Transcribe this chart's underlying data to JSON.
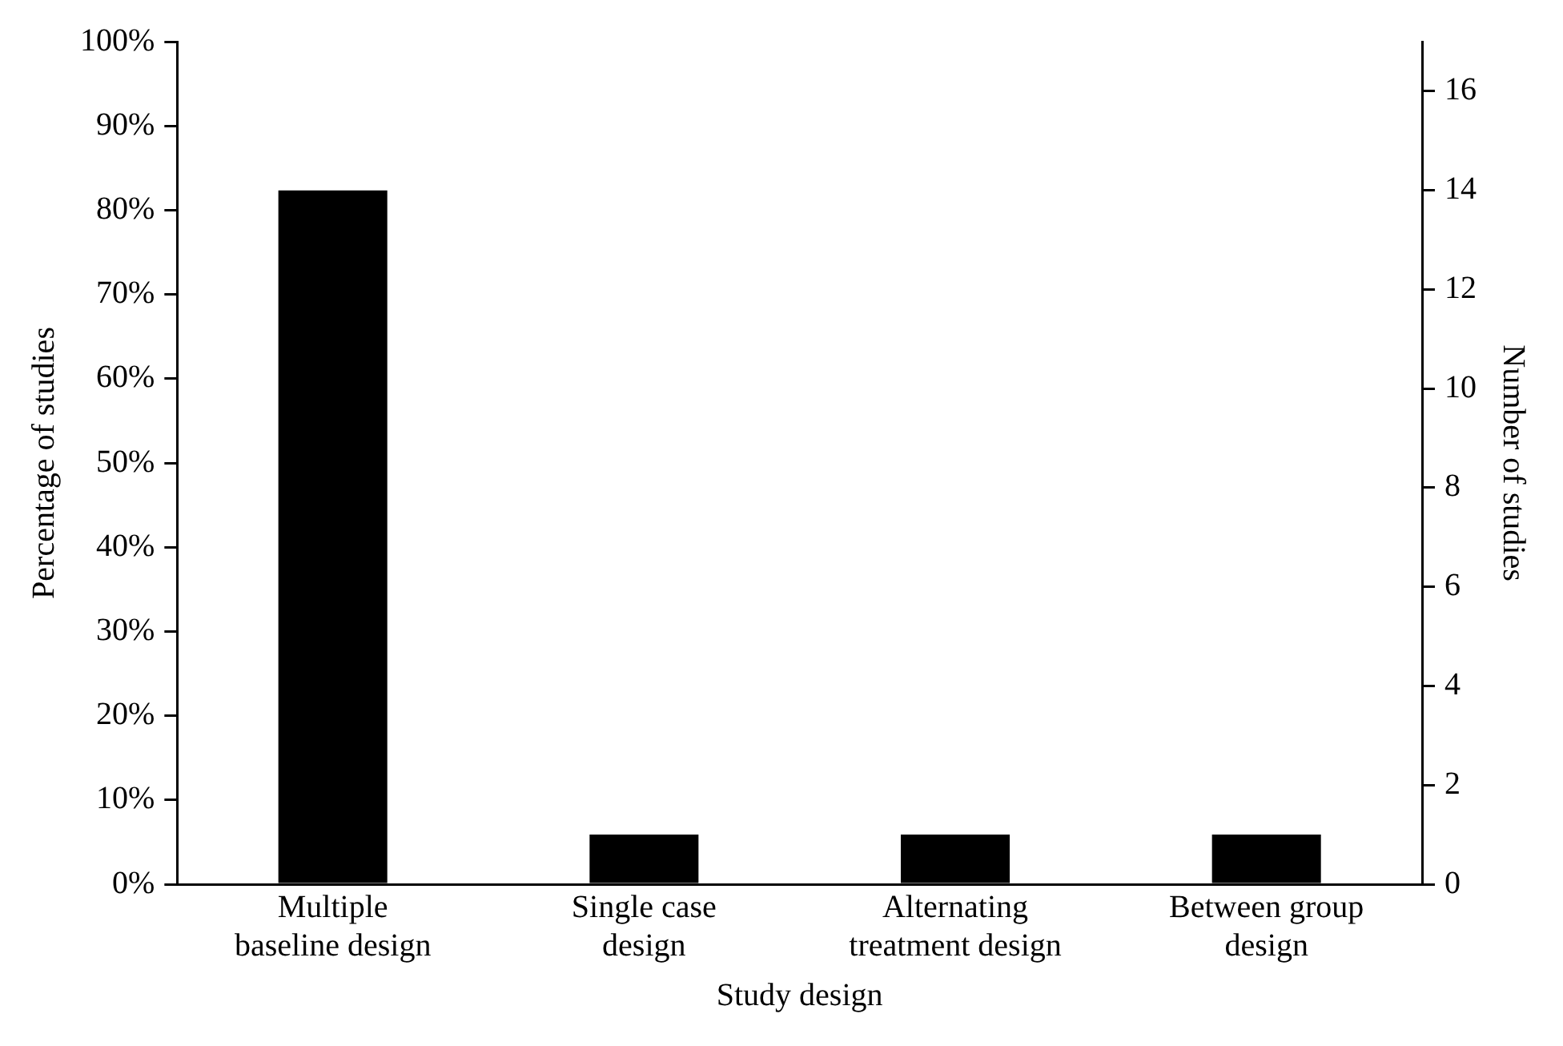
{
  "chart_data": {
    "type": "bar",
    "xlabel": "Study design",
    "ylabel": "Percentage of studies",
    "y2label": "Number of studies",
    "categories": [
      "Multiple baseline design",
      "Single case design",
      "Alternating treatment design",
      "Between group design"
    ],
    "series": [
      {
        "color": "#000000",
        "axis": "y2",
        "values": [
          14,
          1,
          1,
          1
        ]
      }
    ],
    "ylim": [
      0,
      100
    ],
    "yticks": [
      {
        "value": 0,
        "label": "0%"
      },
      {
        "value": 10,
        "label": "10%"
      },
      {
        "value": 20,
        "label": "20%"
      },
      {
        "value": 30,
        "label": "30%"
      },
      {
        "value": 40,
        "label": "40%"
      },
      {
        "value": 50,
        "label": "50%"
      },
      {
        "value": 60,
        "label": "60%"
      },
      {
        "value": 70,
        "label": "70%"
      },
      {
        "value": 80,
        "label": "80%"
      },
      {
        "value": 90,
        "label": "90%"
      },
      {
        "value": 100,
        "label": "100%"
      }
    ],
    "y2lim": [
      0,
      17
    ],
    "y2ticks": [
      0,
      2,
      4,
      6,
      8,
      10,
      12,
      14,
      16
    ],
    "grid": false,
    "legend": false
  }
}
